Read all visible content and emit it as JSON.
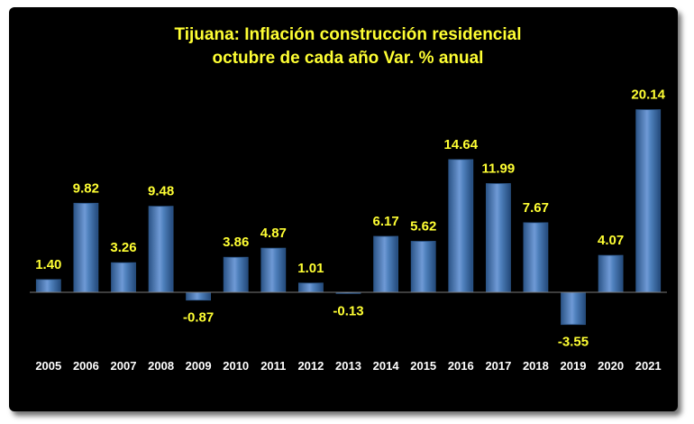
{
  "chart_data": {
    "type": "bar",
    "title": "Tijuana: Inflación construcción residencial",
    "subtitle": "octubre de cada año Var. % anual",
    "categories": [
      "2005",
      "2006",
      "2007",
      "2008",
      "2009",
      "2010",
      "2011",
      "2012",
      "2013",
      "2014",
      "2015",
      "2016",
      "2017",
      "2018",
      "2019",
      "2020",
      "2021"
    ],
    "values": [
      1.4,
      9.82,
      3.26,
      9.48,
      -0.87,
      3.86,
      4.87,
      1.01,
      -0.13,
      6.17,
      5.62,
      14.64,
      11.99,
      7.67,
      -3.55,
      4.07,
      20.14
    ],
    "value_labels": [
      "1.40",
      "9.82",
      "3.26",
      "9.48",
      "-0.87",
      "3.86",
      "4.87",
      "1.01",
      "-0.13",
      "6.17",
      "5.62",
      "14.64",
      "11.99",
      "7.67",
      "-3.55",
      "4.07",
      "20.14"
    ],
    "ylim": [
      -5,
      22
    ],
    "grid": false,
    "legend": "none",
    "colors": {
      "bar": "#4f81bd",
      "bar_light": "#a9c4ea",
      "bar_dark": "#2c5588",
      "title": "#ffff33",
      "labels": "#ffff33",
      "years": "#ffffff",
      "background": "#000000"
    }
  }
}
